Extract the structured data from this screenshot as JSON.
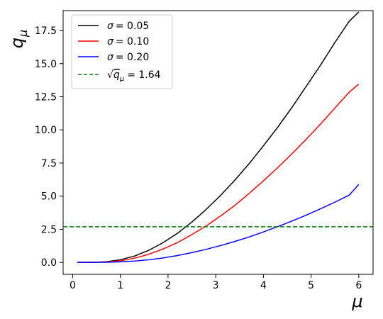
{
  "chart_data": {
    "type": "line",
    "xlabel_main": "μ",
    "ylabel_main": "q",
    "ylabel_sub": "μ",
    "xlim": [
      -0.2,
      6.3
    ],
    "ylim": [
      -0.9,
      19.0
    ],
    "x_ticks": [
      0,
      1,
      2,
      3,
      4,
      5,
      6
    ],
    "x_tick_labels": [
      "0",
      "1",
      "2",
      "3",
      "4",
      "5",
      "6"
    ],
    "y_ticks": [
      0.0,
      2.5,
      5.0,
      7.5,
      10.0,
      12.5,
      15.0,
      17.5
    ],
    "y_tick_labels": [
      "0.0",
      "2.5",
      "5.0",
      "7.5",
      "10.0",
      "12.5",
      "15.0",
      "17.5"
    ],
    "grid": false,
    "legend_position": "top-left",
    "series": [
      {
        "name": "σ = 0.05",
        "legend_prefix": "σ",
        "legend_value": "= 0.05",
        "color": "#000000",
        "style": "solid",
        "x": [
          0.1,
          0.4,
          0.7,
          1.0,
          1.3,
          1.6,
          1.9,
          2.2,
          2.5,
          2.8,
          3.1,
          3.4,
          3.7,
          4.0,
          4.3,
          4.6,
          4.9,
          5.2,
          5.5,
          5.8,
          6.0
        ],
        "y": [
          0.0,
          0.01,
          0.05,
          0.2,
          0.48,
          0.92,
          1.5,
          2.2,
          3.05,
          4.0,
          5.05,
          6.2,
          7.45,
          8.8,
          10.2,
          11.7,
          13.3,
          14.9,
          16.6,
          18.2,
          18.9
        ]
      },
      {
        "name": "σ = 0.10",
        "legend_prefix": "σ",
        "legend_value": "= 0.10",
        "color": "#ff0000",
        "style": "solid",
        "x": [
          0.1,
          0.4,
          0.7,
          1.0,
          1.3,
          1.6,
          1.9,
          2.2,
          2.5,
          2.8,
          3.1,
          3.4,
          3.7,
          4.0,
          4.3,
          4.6,
          4.9,
          5.2,
          5.5,
          5.8,
          6.0
        ],
        "y": [
          0.0,
          0.01,
          0.03,
          0.12,
          0.32,
          0.62,
          1.02,
          1.5,
          2.1,
          2.75,
          3.5,
          4.3,
          5.2,
          6.15,
          7.15,
          8.2,
          9.3,
          10.45,
          11.65,
          12.85,
          13.45
        ]
      },
      {
        "name": "σ = 0.20",
        "legend_prefix": "σ",
        "legend_value": "= 0.20",
        "color": "#0000ff",
        "style": "solid",
        "x": [
          0.1,
          0.4,
          0.7,
          1.0,
          1.3,
          1.6,
          1.9,
          2.2,
          2.5,
          2.8,
          3.1,
          3.4,
          3.7,
          4.0,
          4.3,
          4.6,
          4.9,
          5.2,
          5.5,
          5.8,
          6.0
        ],
        "y": [
          0.0,
          0.0,
          0.01,
          0.04,
          0.1,
          0.2,
          0.34,
          0.52,
          0.74,
          0.99,
          1.27,
          1.58,
          1.92,
          2.3,
          2.7,
          3.12,
          3.57,
          4.05,
          4.55,
          5.08,
          5.88
        ]
      },
      {
        "name": "√q_μ = 1.64",
        "legend_root": "√",
        "legend_var": "q",
        "legend_sub": "μ",
        "legend_value": "= 1.64",
        "color": "#008000",
        "style": "dashed",
        "hline": 2.69
      }
    ]
  }
}
